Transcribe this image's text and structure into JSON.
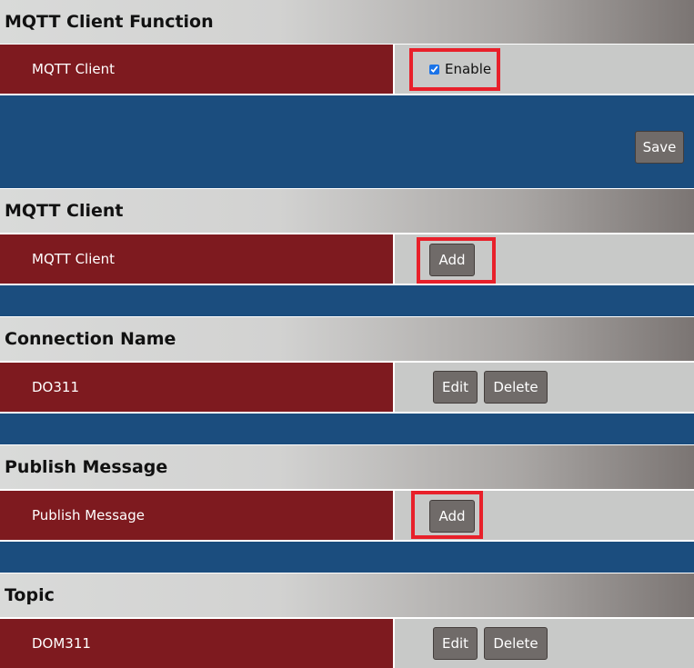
{
  "sections": [
    {
      "title": "MQTT Client Function",
      "label": "MQTT Client",
      "checkbox_label": "Enable",
      "checked": true,
      "save_label": "Save"
    },
    {
      "title": "MQTT Client",
      "label": "MQTT Client",
      "add_label": "Add"
    },
    {
      "title": "Connection Name",
      "label": "DO311",
      "edit_label": "Edit",
      "delete_label": "Delete"
    },
    {
      "title": "Publish Message",
      "label": "Publish Message",
      "add_label": "Add"
    },
    {
      "title": "Topic",
      "label": "DOM311",
      "edit_label": "Edit",
      "delete_label": "Delete"
    }
  ],
  "colors": {
    "label_bg": "#7e1a1f",
    "value_bg": "#c8c9c8",
    "band_bg": "#1b4d7e",
    "highlight": "#e8202a",
    "button_bg": "#706b69"
  }
}
